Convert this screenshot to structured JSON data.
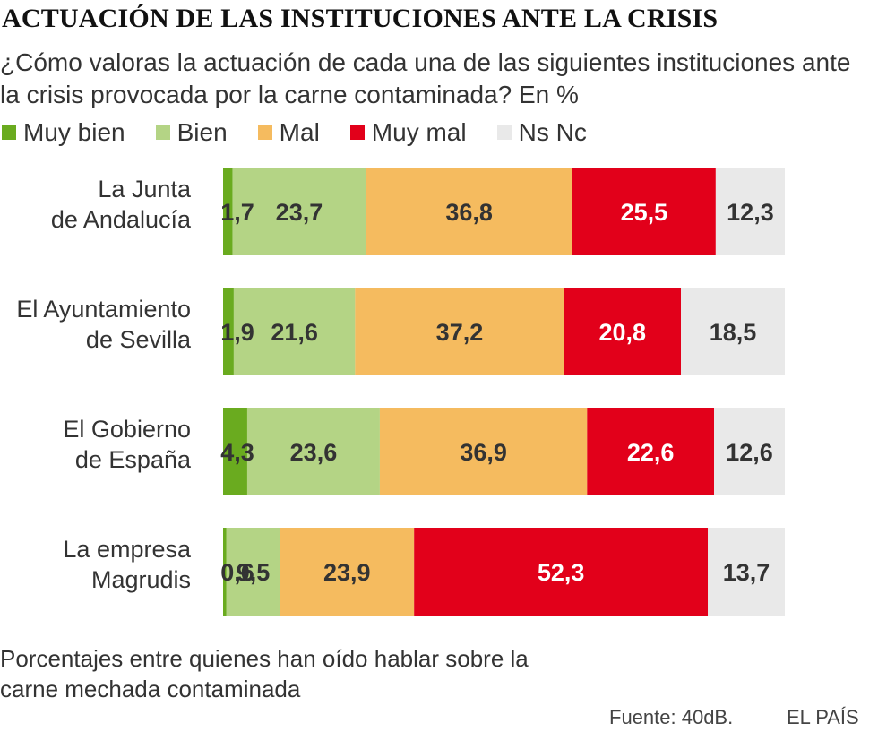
{
  "header": {
    "title": "ACTUACIÓN DE LAS INSTITUCIONES ANTE LA CRISIS",
    "subtitle": "¿Cómo valoras la actuación de cada una de las siguientes instituciones ante la crisis provocada por la carne contaminada? En %"
  },
  "legend": {
    "items": [
      {
        "label": "Muy bien",
        "color": "#6aab1f"
      },
      {
        "label": "Bien",
        "color": "#b4d485"
      },
      {
        "label": "Mal",
        "color": "#f5bb5f"
      },
      {
        "label": "Muy mal",
        "color": "#e2001a"
      },
      {
        "label": "Ns Nc",
        "color": "#e9e9e9"
      }
    ]
  },
  "chart_data": {
    "type": "bar",
    "orientation": "horizontal",
    "stacked": true,
    "title": "ACTUACIÓN DE LAS INSTITUCIONES ANTE LA CRISIS",
    "xlim": [
      0,
      100
    ],
    "categories": [
      [
        "La Junta",
        "de Andalucía"
      ],
      [
        "El Ayuntamiento",
        "de Sevilla"
      ],
      [
        "El Gobierno",
        "de España"
      ],
      [
        "La empresa",
        "Magrudis"
      ]
    ],
    "series": [
      {
        "name": "Muy bien",
        "color": "#6aab1f",
        "label_color": "#333333",
        "values": [
          1.7,
          1.9,
          4.3,
          0.6
        ],
        "labels": [
          "1,7",
          "1,9",
          "4,3",
          "0,6"
        ]
      },
      {
        "name": "Bien",
        "color": "#b4d485",
        "label_color": "#333333",
        "values": [
          23.7,
          21.6,
          23.6,
          9.5
        ],
        "labels": [
          "23,7",
          "21,6",
          "23,6",
          "9,5"
        ]
      },
      {
        "name": "Mal",
        "color": "#f5bb5f",
        "label_color": "#333333",
        "values": [
          36.8,
          37.2,
          36.9,
          23.9
        ],
        "labels": [
          "36,8",
          "37,2",
          "36,9",
          "23,9"
        ]
      },
      {
        "name": "Muy mal",
        "color": "#e2001a",
        "label_color": "#ffffff",
        "values": [
          25.5,
          20.8,
          22.6,
          52.3
        ],
        "labels": [
          "25,5",
          "20,8",
          "22,6",
          "52,3"
        ]
      },
      {
        "name": "Ns Nc",
        "color": "#e9e9e9",
        "label_color": "#333333",
        "values": [
          12.3,
          18.5,
          12.6,
          13.7
        ],
        "labels": [
          "12,3",
          "18,5",
          "12,6",
          "13,7"
        ]
      }
    ]
  },
  "footer": {
    "note": "Porcentajes entre quienes han oído hablar sobre la carne mechada contaminada",
    "source": "Fuente: 40dB.",
    "brand": "EL PAÍS"
  }
}
